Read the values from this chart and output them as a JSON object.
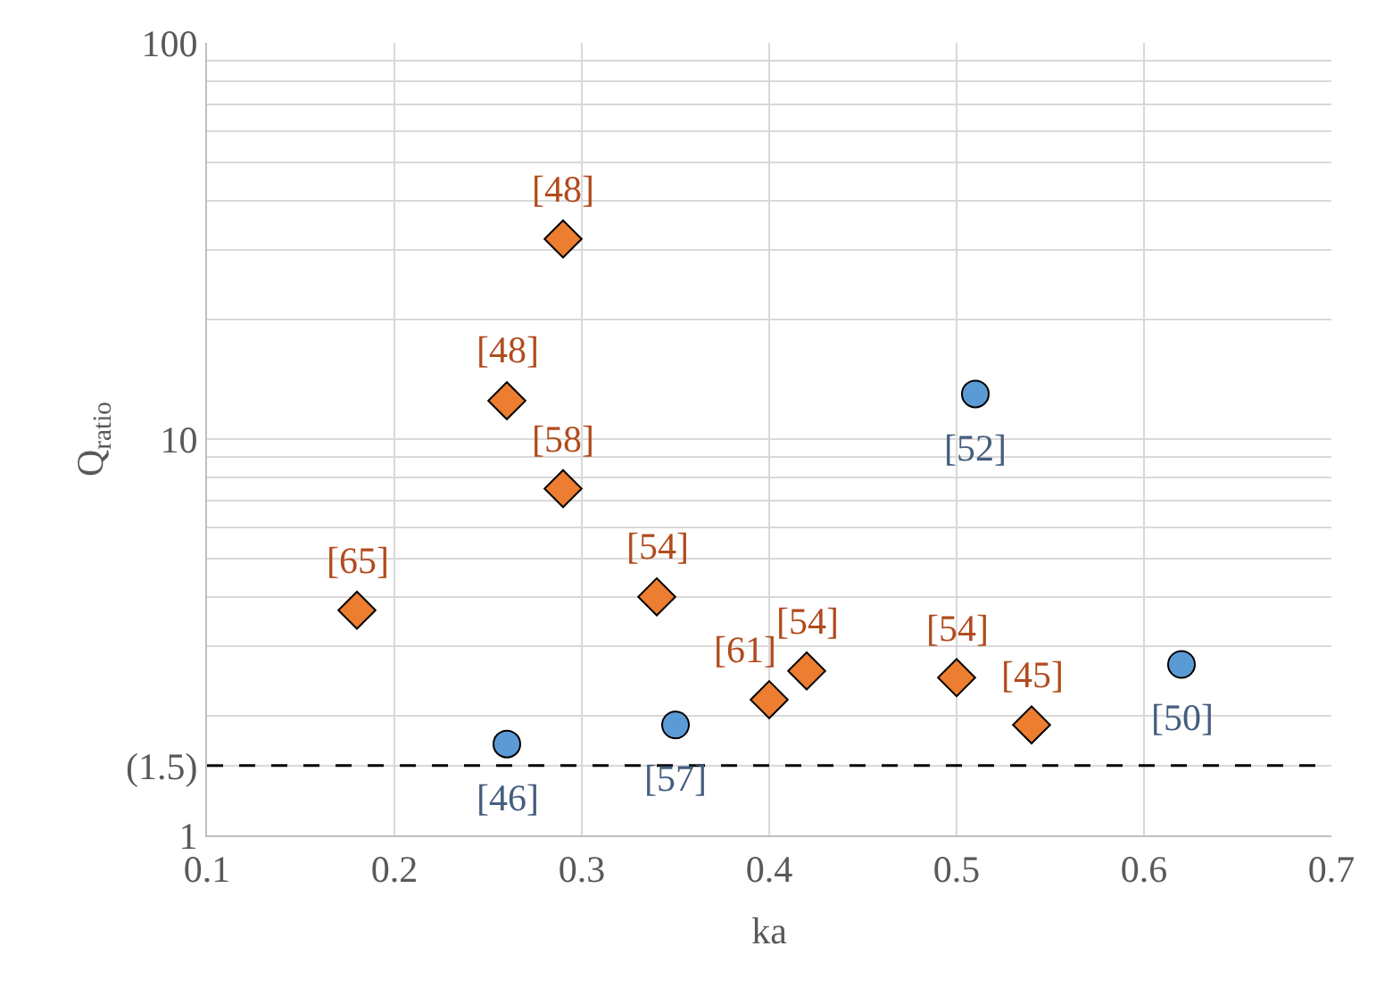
{
  "chart_data": {
    "type": "scatter",
    "xlabel": "ka",
    "ylabel": "Q$_{ratio}$",
    "log": "y",
    "grid": true,
    "xlim": [
      0.1,
      0.7
    ],
    "xticks": [
      0.1,
      0.2,
      0.3,
      0.4,
      0.5,
      0.6,
      0.7
    ],
    "ylim": [
      1,
      100
    ],
    "yticks": [
      1,
      {
        "value": 1.5,
        "label": "(1.5)"
      },
      {
        "value": 2,
        "label": null
      },
      {
        "value": 3,
        "label": null
      },
      {
        "value": 4,
        "label": null
      },
      {
        "value": 5,
        "label": null
      },
      {
        "value": 6,
        "label": null
      },
      {
        "value": 7,
        "label": null
      },
      {
        "value": 8,
        "label": null
      },
      {
        "value": 9,
        "label": null
      },
      10,
      {
        "value": 20,
        "label": null
      },
      {
        "value": 30,
        "label": null
      },
      {
        "value": 40,
        "label": null
      },
      {
        "value": 50,
        "label": null
      },
      {
        "value": 60,
        "label": null
      },
      {
        "value": 70,
        "label": null
      },
      {
        "value": 80,
        "label": null
      },
      {
        "value": 90,
        "label": null
      },
      100
    ],
    "ref_lines": [
      {
        "axis": "y",
        "value": 1.5,
        "color": "#000000",
        "line_style": "dashed"
      }
    ],
    "series": [
      {
        "color": "#ed7d31",
        "marker": "diamond",
        "x": [
          0.29,
          0.26,
          0.29,
          0.18,
          0.34,
          0.4,
          0.42,
          0.5,
          0.54
        ],
        "values": [
          32,
          12.5,
          7.5,
          3.7,
          4.0,
          2.2,
          2.6,
          2.5,
          1.9
        ]
      },
      {
        "color": "#5b9bd5",
        "marker": "circle",
        "x": [
          0.26,
          0.35,
          0.51,
          0.62
        ],
        "values": [
          1.7,
          1.9,
          13,
          2.7
        ]
      }
    ],
    "annotations": [
      {
        "text": "[48]",
        "x": 0.29,
        "y": 32
      },
      {
        "text": "[48]",
        "x": 0.26,
        "y": 12.5
      },
      {
        "text": "[58]",
        "x": 0.29,
        "y": 7.5
      },
      {
        "text": "[65]",
        "x": 0.18,
        "y": 3.7
      },
      {
        "text": "[54]",
        "x": 0.34,
        "y": 4.0
      },
      {
        "text": "[61]",
        "x": 0.4,
        "y": 2.2
      },
      {
        "text": "[54]",
        "x": 0.42,
        "y": 2.6
      },
      {
        "text": "[54]",
        "x": 0.5,
        "y": 2.5
      },
      {
        "text": "[45]",
        "x": 0.54,
        "y": 1.9
      },
      {
        "text": "[46]",
        "x": 0.26,
        "y": 1.7
      },
      {
        "text": "[57]",
        "x": 0.35,
        "y": 1.9
      },
      {
        "text": "[52]",
        "x": 0.51,
        "y": 13
      },
      {
        "text": "[50]",
        "x": 0.62,
        "y": 2.7
      }
    ]
  }
}
